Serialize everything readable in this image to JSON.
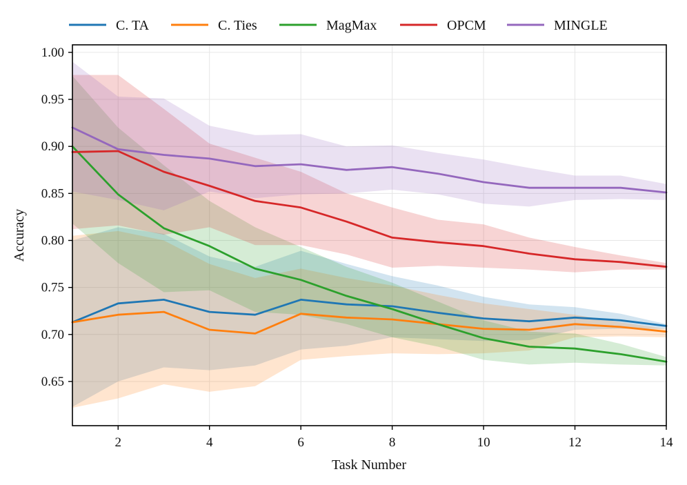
{
  "chart_data": {
    "type": "line",
    "title": "",
    "xlabel": "Task Number",
    "ylabel": "Accuracy",
    "xlim": [
      1,
      14
    ],
    "ylim": [
      0.603,
      1.008
    ],
    "x": [
      1,
      2,
      3,
      4,
      5,
      6,
      7,
      8,
      9,
      10,
      11,
      12,
      13,
      14
    ],
    "xticks": [
      2,
      4,
      6,
      8,
      10,
      12,
      14
    ],
    "xtick_labels": [
      "2",
      "4",
      "6",
      "8",
      "10",
      "12",
      "14"
    ],
    "yticks": [
      0.65,
      0.7,
      0.75,
      0.8,
      0.85,
      0.9,
      0.95,
      1.0
    ],
    "ytick_labels": [
      "0.65",
      "0.70",
      "0.75",
      "0.80",
      "0.85",
      "0.90",
      "0.95",
      "1.00"
    ],
    "grid": true,
    "legend_position": "top",
    "series": [
      {
        "name": "C. TA",
        "color": "#1f77b4",
        "values": [
          0.713,
          0.733,
          0.737,
          0.724,
          0.721,
          0.737,
          0.732,
          0.73,
          0.723,
          0.717,
          0.714,
          0.718,
          0.715,
          0.709
        ],
        "upper": [
          0.8,
          0.814,
          0.807,
          0.783,
          0.772,
          0.789,
          0.775,
          0.762,
          0.752,
          0.74,
          0.732,
          0.729,
          0.722,
          0.711
        ],
        "lower": [
          0.623,
          0.65,
          0.665,
          0.662,
          0.667,
          0.684,
          0.688,
          0.697,
          0.695,
          0.693,
          0.694,
          0.705,
          0.706,
          0.706
        ]
      },
      {
        "name": "C. Ties",
        "color": "#ff7f0e",
        "values": [
          0.713,
          0.721,
          0.724,
          0.705,
          0.701,
          0.722,
          0.718,
          0.716,
          0.711,
          0.706,
          0.705,
          0.711,
          0.708,
          0.703
        ],
        "upper": [
          0.805,
          0.81,
          0.8,
          0.775,
          0.76,
          0.77,
          0.76,
          0.752,
          0.742,
          0.733,
          0.727,
          0.721,
          0.713,
          0.706
        ],
        "lower": [
          0.622,
          0.632,
          0.647,
          0.639,
          0.645,
          0.673,
          0.677,
          0.68,
          0.679,
          0.68,
          0.683,
          0.697,
          0.698,
          0.697
        ]
      },
      {
        "name": "MagMax",
        "color": "#2ca02c",
        "values": [
          0.9,
          0.849,
          0.813,
          0.794,
          0.77,
          0.758,
          0.741,
          0.727,
          0.711,
          0.696,
          0.687,
          0.685,
          0.679,
          0.671
        ],
        "upper": [
          0.975,
          0.92,
          0.88,
          0.842,
          0.814,
          0.793,
          0.772,
          0.755,
          0.735,
          0.715,
          0.703,
          0.701,
          0.69,
          0.676
        ],
        "lower": [
          0.818,
          0.776,
          0.745,
          0.747,
          0.724,
          0.721,
          0.711,
          0.697,
          0.687,
          0.673,
          0.668,
          0.67,
          0.668,
          0.667
        ]
      },
      {
        "name": "OPCM",
        "color": "#d62728",
        "values": [
          0.894,
          0.895,
          0.873,
          0.858,
          0.842,
          0.835,
          0.82,
          0.803,
          0.798,
          0.794,
          0.786,
          0.78,
          0.777,
          0.772
        ],
        "upper": [
          0.976,
          0.976,
          0.94,
          0.903,
          0.888,
          0.873,
          0.85,
          0.835,
          0.822,
          0.817,
          0.803,
          0.793,
          0.784,
          0.776
        ],
        "lower": [
          0.812,
          0.816,
          0.806,
          0.814,
          0.795,
          0.795,
          0.785,
          0.771,
          0.773,
          0.771,
          0.769,
          0.766,
          0.769,
          0.769
        ]
      },
      {
        "name": "MINGLE",
        "color": "#9467bd",
        "values": [
          0.92,
          0.897,
          0.891,
          0.887,
          0.879,
          0.881,
          0.875,
          0.878,
          0.871,
          0.862,
          0.856,
          0.856,
          0.856,
          0.851
        ],
        "upper": [
          0.99,
          0.953,
          0.951,
          0.922,
          0.912,
          0.913,
          0.9,
          0.901,
          0.893,
          0.886,
          0.877,
          0.869,
          0.869,
          0.86
        ],
        "lower": [
          0.852,
          0.843,
          0.832,
          0.852,
          0.845,
          0.849,
          0.85,
          0.854,
          0.849,
          0.839,
          0.836,
          0.843,
          0.844,
          0.843
        ]
      }
    ]
  }
}
